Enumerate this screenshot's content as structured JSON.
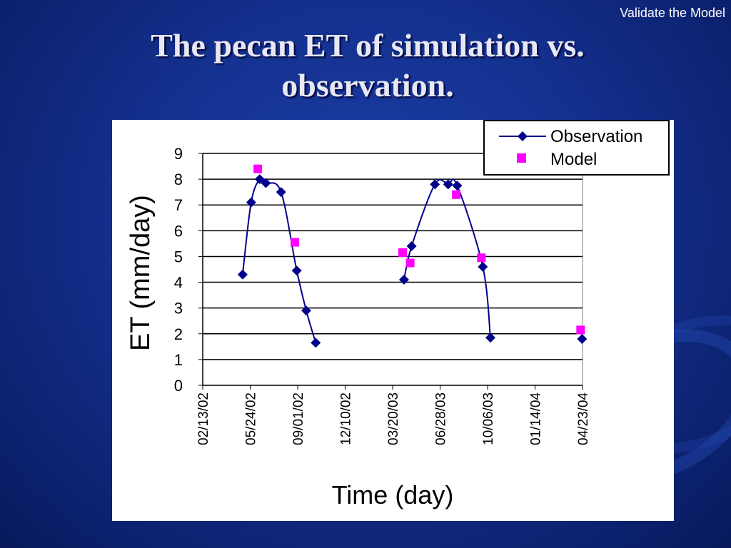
{
  "corner_label": "Validate the Model",
  "title_line1": "The pecan ET of simulation vs.",
  "title_line2": "observation.",
  "chart_data": {
    "type": "line",
    "title": "",
    "xlabel": "Time (day)",
    "ylabel": "ET (mm/day)",
    "ylim": [
      0,
      9
    ],
    "yticks": [
      0,
      1,
      2,
      3,
      4,
      5,
      6,
      7,
      8,
      9
    ],
    "xticks": [
      "02/13/02",
      "05/24/02",
      "09/01/02",
      "12/10/02",
      "03/20/03",
      "06/28/03",
      "10/06/03",
      "01/14/04",
      "04/23/04"
    ],
    "grid": "horizontal",
    "legend_position": "top-right",
    "series": [
      {
        "name": "Observation",
        "color": "#00008B",
        "marker": "diamond",
        "line": true,
        "segments": [
          [
            [
              "2002-05-08",
              4.3
            ],
            [
              "2002-05-26",
              7.1
            ],
            [
              "2002-06-13",
              8.0
            ],
            [
              "2002-06-26",
              7.85
            ],
            [
              "2002-07-28",
              7.5
            ],
            [
              "2002-08-30",
              4.45
            ],
            [
              "2002-09-19",
              2.9
            ],
            [
              "2002-10-09",
              1.65
            ]
          ],
          [
            [
              "2003-04-13",
              4.1
            ],
            [
              "2003-04-29",
              5.4
            ],
            [
              "2003-06-17",
              7.8
            ],
            [
              "2003-07-15",
              7.8
            ],
            [
              "2003-08-03",
              7.75
            ],
            [
              "2003-09-26",
              4.6
            ],
            [
              "2003-10-12",
              1.85
            ]
          ],
          [
            [
              "2004-04-22",
              1.8
            ]
          ]
        ]
      },
      {
        "name": "Model",
        "color": "#FF00FF",
        "marker": "square",
        "line": false,
        "points": [
          [
            "2002-06-09",
            8.4
          ],
          [
            "2002-08-26",
            5.55
          ],
          [
            "2003-04-10",
            5.15
          ],
          [
            "2003-04-26",
            4.75
          ],
          [
            "2003-08-01",
            7.4
          ],
          [
            "2003-09-23",
            4.95
          ],
          [
            "2004-04-19",
            2.15
          ]
        ]
      }
    ]
  }
}
